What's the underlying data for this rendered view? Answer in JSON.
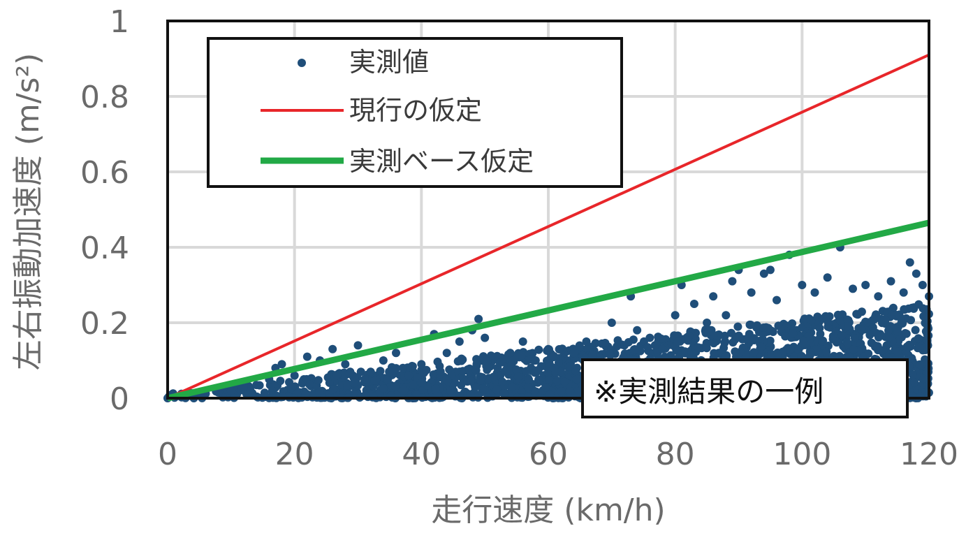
{
  "chart_data": {
    "type": "scatter",
    "xlabel": "走行速度 (km/h)",
    "ylabel": "左右振動加速度 (m/s²)",
    "xlim": [
      0,
      120
    ],
    "ylim": [
      0,
      1
    ],
    "xticks": [
      "0",
      "20",
      "40",
      "60",
      "80",
      "100",
      "120"
    ],
    "yticks": [
      "0",
      "0.2",
      "0.4",
      "0.6",
      "0.8",
      "1"
    ],
    "grid": true,
    "legend_position": "top-left",
    "annotation": "※実測結果の一例",
    "series": [
      {
        "name": "実測値",
        "kind": "scatter",
        "color": "#1f4e79",
        "points": [
          [
            0,
            0.0
          ],
          [
            2,
            0.005
          ],
          [
            4,
            0.008
          ],
          [
            6,
            0.012
          ],
          [
            8,
            0.015
          ],
          [
            10,
            0.02
          ],
          [
            12,
            0.03
          ],
          [
            14,
            0.035
          ],
          [
            16,
            0.05
          ],
          [
            17,
            0.08
          ],
          [
            18,
            0.09
          ],
          [
            20,
            0.06
          ],
          [
            22,
            0.11
          ],
          [
            24,
            0.1
          ],
          [
            26,
            0.13
          ],
          [
            28,
            0.09
          ],
          [
            30,
            0.14
          ],
          [
            32,
            0.07
          ],
          [
            34,
            0.1
          ],
          [
            36,
            0.12
          ],
          [
            38,
            0.06
          ],
          [
            40,
            0.09
          ],
          [
            42,
            0.17
          ],
          [
            44,
            0.12
          ],
          [
            46,
            0.15
          ],
          [
            48,
            0.18
          ],
          [
            49,
            0.21
          ],
          [
            50,
            0.16
          ],
          [
            52,
            0.08
          ],
          [
            54,
            0.12
          ],
          [
            56,
            0.15
          ],
          [
            58,
            0.1
          ],
          [
            60,
            0.13
          ],
          [
            62,
            0.07
          ],
          [
            64,
            0.12
          ],
          [
            66,
            0.15
          ],
          [
            68,
            0.1
          ],
          [
            70,
            0.2
          ],
          [
            72,
            0.14
          ],
          [
            73,
            0.27
          ],
          [
            74,
            0.18
          ],
          [
            76,
            0.16
          ],
          [
            78,
            0.13
          ],
          [
            80,
            0.22
          ],
          [
            81,
            0.3
          ],
          [
            83,
            0.25
          ],
          [
            85,
            0.2
          ],
          [
            86,
            0.27
          ],
          [
            88,
            0.22
          ],
          [
            89,
            0.31
          ],
          [
            90,
            0.34
          ],
          [
            92,
            0.28
          ],
          [
            94,
            0.33
          ],
          [
            95,
            0.34
          ],
          [
            96,
            0.26
          ],
          [
            98,
            0.38
          ],
          [
            100,
            0.3
          ],
          [
            102,
            0.28
          ],
          [
            104,
            0.32
          ],
          [
            106,
            0.4
          ],
          [
            108,
            0.29
          ],
          [
            110,
            0.3
          ],
          [
            112,
            0.27
          ],
          [
            114,
            0.31
          ],
          [
            116,
            0.28
          ],
          [
            117,
            0.36
          ],
          [
            118,
            0.33
          ],
          [
            119,
            0.3
          ],
          [
            120,
            0.27
          ]
        ],
        "scatter_density": "dense cloud between 0 and ~0.25 m/s², denser at higher speeds"
      },
      {
        "name": "現行の仮定",
        "kind": "line",
        "color": "#e8262a",
        "x": [
          0,
          120
        ],
        "values": [
          0,
          0.91
        ]
      },
      {
        "name": "実測ベース仮定",
        "kind": "line",
        "color": "#22a946",
        "x": [
          0,
          120
        ],
        "values": [
          0,
          0.465
        ]
      }
    ]
  }
}
